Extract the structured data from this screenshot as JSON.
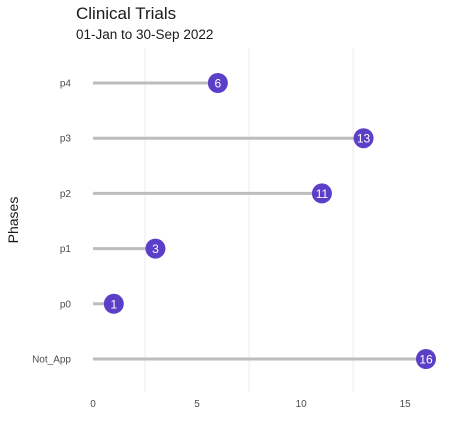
{
  "chart_data": {
    "type": "lollipop",
    "title": "Clinical Trials",
    "subtitle": "01-Jan to 30-Sep 2022",
    "xlabel": "",
    "ylabel": "Phases",
    "categories": [
      "Not_App",
      "p0",
      "p1",
      "p2",
      "p3",
      "p4"
    ],
    "values": [
      16,
      1,
      3,
      11,
      13,
      6
    ],
    "xlim": [
      0,
      16
    ],
    "xticks": [
      0,
      5,
      10,
      15
    ],
    "grid": true,
    "colors": {
      "point": "#5b3fc8",
      "stem": "#bdbdbd",
      "grid": "#ececec",
      "label": "#ffffff"
    }
  }
}
